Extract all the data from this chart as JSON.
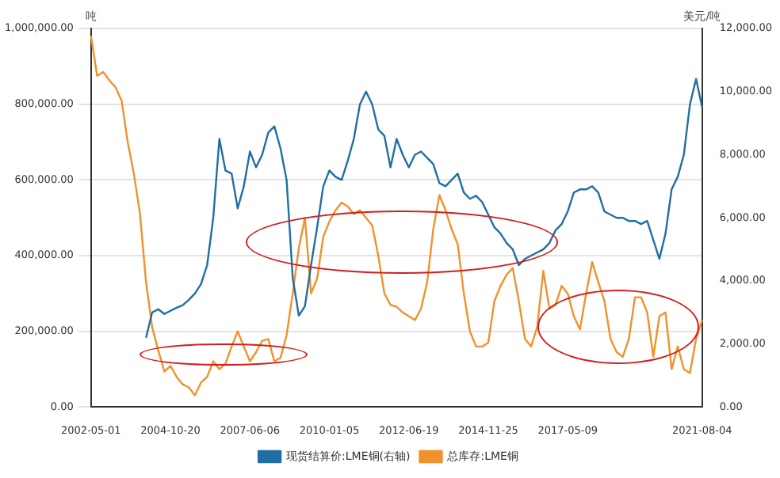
{
  "chart_data": {
    "type": "line",
    "ylabel": "吨",
    "y2label": "美元/吨",
    "categories": [
      "2002-05-01",
      null,
      null,
      null,
      null,
      null,
      null,
      null,
      null,
      null,
      null,
      null,
      null,
      "2004-10-20",
      null,
      null,
      null,
      null,
      null,
      null,
      null,
      null,
      null,
      null,
      null,
      null,
      "2007-06-06",
      null,
      null,
      null,
      null,
      null,
      null,
      null,
      null,
      null,
      null,
      null,
      null,
      "2010-01-05",
      null,
      null,
      null,
      null,
      null,
      null,
      null,
      null,
      null,
      null,
      null,
      null,
      "2012-06-19",
      null,
      null,
      null,
      null,
      null,
      null,
      null,
      null,
      null,
      null,
      null,
      null,
      "2014-11-25",
      null,
      null,
      null,
      null,
      null,
      null,
      null,
      null,
      null,
      null,
      null,
      null,
      "2017-05-09",
      null,
      null,
      null,
      null,
      null,
      null,
      null,
      null,
      null,
      null,
      null,
      null,
      null,
      null,
      null,
      null,
      null,
      null,
      null,
      null,
      null,
      "2021-08-04"
    ],
    "series": [
      {
        "name": "现货结算价:LME铜(右轴)",
        "color": "#1f6fa3",
        "axis": "y2",
        "values": [
          null,
          null,
          null,
          null,
          null,
          null,
          null,
          null,
          null,
          2200,
          3000,
          3100,
          2950,
          3050,
          3150,
          3230,
          3400,
          3600,
          3900,
          4500,
          6000,
          8500,
          7500,
          7400,
          6300,
          7000,
          8100,
          7600,
          8000,
          8700,
          8900,
          8200,
          7200,
          4100,
          2900,
          3200,
          4500,
          5700,
          7000,
          7500,
          7300,
          7200,
          7800,
          8500,
          9600,
          10000,
          9600,
          8800,
          8600,
          7600,
          8500,
          8000,
          7600,
          8000,
          8100,
          7900,
          7700,
          7100,
          7000,
          7200,
          7400,
          6800,
          6600,
          6700,
          6500,
          6100,
          5700,
          5500,
          5200,
          5000,
          4500,
          4700,
          4800,
          4900,
          5000,
          5200,
          5600,
          5800,
          6200,
          6800,
          6900,
          6900,
          7000,
          6800,
          6200,
          6100,
          6000,
          6000,
          5900,
          5900,
          5800,
          5900,
          5300,
          4700,
          5500,
          6900,
          7300,
          8000,
          9600,
          10400,
          9500
        ]
      },
      {
        "name": "总库存:LME铜",
        "color": "#f0922b",
        "values": [
          980000,
          875000,
          885000,
          863000,
          845000,
          810000,
          700000,
          617000,
          512000,
          330000,
          211000,
          150000,
          94000,
          109000,
          80000,
          60000,
          52000,
          31000,
          65000,
          80000,
          121000,
          100000,
          115000,
          160000,
          200000,
          160000,
          121000,
          145000,
          175000,
          180000,
          121000,
          130000,
          190000,
          300000,
          420000,
          500000,
          300000,
          340000,
          450000,
          490000,
          520000,
          540000,
          530000,
          510000,
          520000,
          500000,
          480000,
          400000,
          300000,
          270000,
          265000,
          250000,
          240000,
          230000,
          260000,
          330000,
          470000,
          560000,
          520000,
          470000,
          430000,
          300000,
          200000,
          160000,
          160000,
          170000,
          280000,
          320000,
          350000,
          367000,
          280000,
          180000,
          160000,
          211000,
          360000,
          260000,
          270000,
          320000,
          300000,
          240000,
          205000,
          300000,
          383000,
          330000,
          280000,
          180000,
          145000,
          133000,
          180000,
          290000,
          290000,
          250000,
          133000,
          240000,
          250000,
          100000,
          160000,
          100000,
          90000,
          180000,
          230000
        ]
      }
    ],
    "ylim": [
      0,
      1000000
    ],
    "yticks": [
      {
        "value": 0,
        "label": "0.00"
      },
      {
        "value": 200000,
        "label": "200,000.00"
      },
      {
        "value": 400000,
        "label": "400,000.00"
      },
      {
        "value": 600000,
        "label": "600,000.00"
      },
      {
        "value": 800000,
        "label": "800,000.00"
      },
      {
        "value": 1000000,
        "label": "1,000,000.00"
      }
    ],
    "y2lim": [
      0,
      12000
    ],
    "y2ticks": [
      {
        "value": 0,
        "label": "0.00"
      },
      {
        "value": 2000,
        "label": "2,000.00"
      },
      {
        "value": 4000,
        "label": "4,000.00"
      },
      {
        "value": 6000,
        "label": "6,000.00"
      },
      {
        "value": 8000,
        "label": "8,000.00"
      },
      {
        "value": 10000,
        "label": "10,000.00"
      },
      {
        "value": 12000,
        "label": "12,000.00"
      }
    ],
    "grid": "y",
    "legend": "bottom",
    "marker": "none",
    "line_style": "solid"
  }
}
